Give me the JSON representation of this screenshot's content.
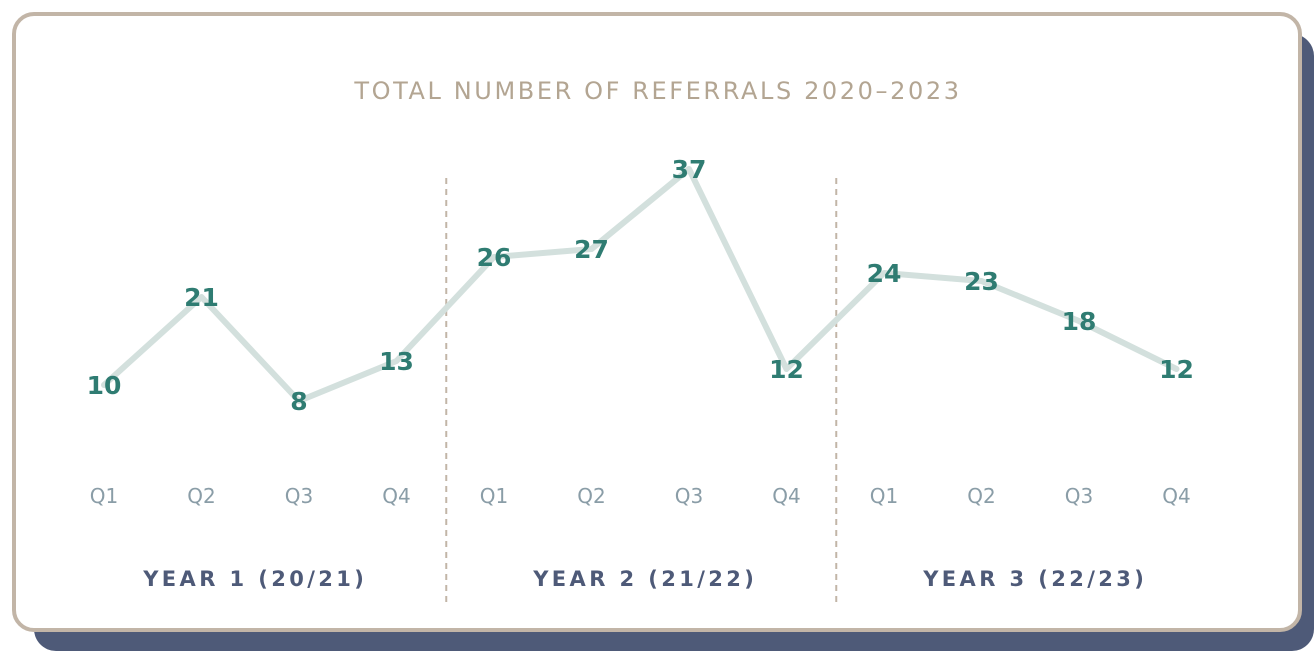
{
  "chart_data": {
    "type": "line",
    "title": "TOTAL NUMBER OF REFERRALS 2020–2023",
    "groups": [
      {
        "label": "YEAR 1 (20/21)",
        "categories": [
          "Q1",
          "Q2",
          "Q3",
          "Q4"
        ]
      },
      {
        "label": "YEAR 2 (21/22)",
        "categories": [
          "Q1",
          "Q2",
          "Q3",
          "Q4"
        ]
      },
      {
        "label": "YEAR 3 (22/23)",
        "categories": [
          "Q1",
          "Q2",
          "Q3",
          "Q4"
        ]
      }
    ],
    "values": [
      10,
      21,
      8,
      13,
      26,
      27,
      37,
      12,
      24,
      23,
      18,
      12
    ],
    "data_labels": [
      "10",
      "21",
      "8",
      "13",
      "26",
      "27",
      "37",
      "12",
      "24",
      "23",
      "18",
      "12"
    ],
    "ylim": [
      0,
      40
    ],
    "grid": false,
    "legend": "none",
    "colors": {
      "line": "#d3e0dd",
      "value_text": "#2f7c72",
      "title": "#b3a592",
      "tick": "#8a9da7",
      "year": "#4e5a78",
      "divider": "#c2b5a7",
      "border": "#c2b5a7",
      "shadow": "#4e5a78"
    }
  }
}
